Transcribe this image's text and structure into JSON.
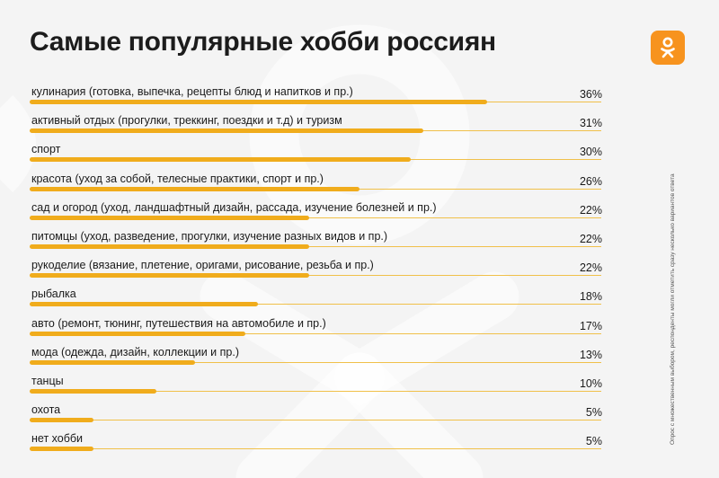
{
  "title": "Самые популярные хобби россиян",
  "logo_icon": "odnoklassniki-logo",
  "colors": {
    "bar": "#f0ac1c",
    "track": "#f0c04a",
    "logo": "#f7931e",
    "background": "#f4f4f4"
  },
  "note": "Опрос с множественным выбором, респонденты могли отметить сразу несколько вариантов ответа",
  "chart_data": {
    "type": "bar",
    "orientation": "horizontal",
    "categories": [
      "кулинария (готовка, выпечка, рецепты блюд и напитков и пр.)",
      "активный отдых (прогулки, треккинг, поездки и т.д) и туризм",
      "спорт",
      "красота (уход за собой, телесные практики, спорт и пр.)",
      "сад и огород (уход, ландшафтный дизайн, рассада, изучение болезней и пр.)",
      "питомцы (уход, разведение, прогулки, изучение разных видов и пр.)",
      "рукоделие (вязание, плетение, оригами, рисование, резьба и пр.)",
      "рыбалка",
      "авто (ремонт, тюнинг, путешествия на автомобиле и пр.)",
      "мода (одежда, дизайн, коллекции и пр.)",
      "танцы",
      "охота",
      "нет хобби"
    ],
    "values": [
      36,
      31,
      30,
      26,
      22,
      22,
      22,
      18,
      17,
      13,
      10,
      5,
      5
    ],
    "value_labels": [
      "36%",
      "31%",
      "30%",
      "26%",
      "22%",
      "22%",
      "22%",
      "18%",
      "17%",
      "13%",
      "10%",
      "5%",
      "5%"
    ],
    "xlim": [
      0,
      45
    ],
    "grid": false,
    "legend": "none"
  }
}
